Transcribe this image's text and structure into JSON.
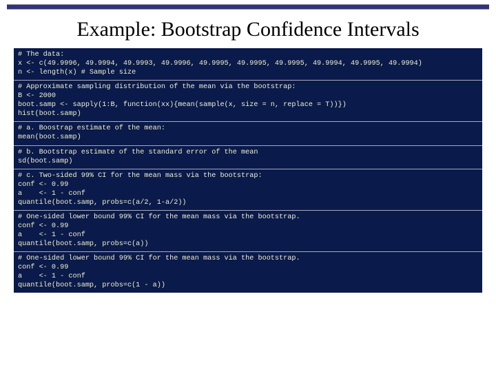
{
  "title": "Example: Bootstrap Confidence Intervals",
  "colors": {
    "code_bg": "#0a1a4a",
    "code_fg": "#f0f0d0",
    "bar": "#333377",
    "page_bg": "#ffffff",
    "title_color": "#000000"
  },
  "typography": {
    "title_fontsize": 30,
    "code_fontsize": 10.2,
    "code_family": "Courier New"
  },
  "blocks": [
    {
      "lines": [
        "# The data:",
        "x <- c(49.9996, 49.9994, 49.9993, 49.9996, 49.9995, 49.9995, 49.9995, 49.9994, 49.9995, 49.9994)",
        "n <- length(x) # Sample size"
      ]
    },
    {
      "lines": [
        "# Approximate sampling distribution of the mean via the bootstrap:",
        "B <- 2000",
        "boot.samp <- sapply(1:B, function(xx){mean(sample(x, size = n, replace = T))})",
        "hist(boot.samp)"
      ]
    },
    {
      "lines": [
        "# a. Boostrap estimate of the mean:",
        "mean(boot.samp)"
      ]
    },
    {
      "lines": [
        "# b. Bootstrap estimate of the standard error of the mean",
        "sd(boot.samp)"
      ]
    },
    {
      "lines": [
        "# c. Two-sided 99% CI for the mean mass via the bootstrap:",
        "conf <- 0.99",
        "a    <- 1 - conf",
        "quantile(boot.samp, probs=c(a/2, 1-a/2))"
      ]
    },
    {
      "lines": [
        "# One-sided lower bound 99% CI for the mean mass via the bootstrap.",
        "conf <- 0.99",
        "a    <- 1 - conf",
        "quantile(boot.samp, probs=c(a))"
      ]
    },
    {
      "lines": [
        "# One-sided lower bound 99% CI for the mean mass via the bootstrap.",
        "conf <- 0.99",
        "a    <- 1 - conf",
        "quantile(boot.samp, probs=c(1 - a))"
      ]
    }
  ]
}
